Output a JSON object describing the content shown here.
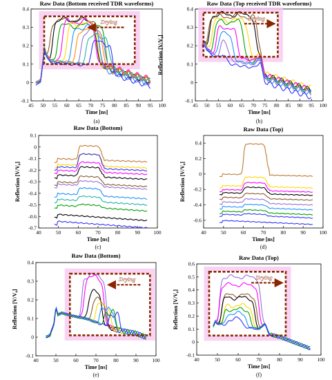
{
  "chart_data": [
    {
      "type": "line",
      "title": "Raw Data (Bottom received TDR waveforms)",
      "xlabel": "Time [ns]",
      "ylabel": "Reflection [V/V₀]",
      "caption": "(a)",
      "annotation": "Drying",
      "arrow": "left",
      "xlim": [
        45,
        100
      ],
      "ylim": [
        -0.1,
        0.4
      ],
      "xticks": [
        "45",
        "50",
        "55",
        "60",
        "65",
        "70",
        "75",
        "80",
        "85",
        "90",
        "95",
        "100"
      ],
      "yticks": [
        "-0.1",
        "0",
        "0.1",
        "0.2",
        "0.3",
        "0.4"
      ],
      "box": {
        "x": [
          50.5,
          88.5
        ],
        "y": [
          0.1,
          0.36
        ]
      },
      "base": [
        [
          47,
          0
        ],
        [
          49,
          0.01
        ],
        [
          50,
          0.12
        ],
        [
          50.6,
          0.19
        ],
        [
          51.5,
          0.15
        ],
        [
          53,
          0.12
        ],
        [
          55,
          0.115
        ],
        [
          60,
          0.11
        ],
        [
          65,
          0.105
        ],
        [
          70,
          0.1
        ],
        [
          75,
          0.09
        ],
        [
          80,
          0.07
        ],
        [
          85,
          0.05
        ],
        [
          90,
          0.03
        ],
        [
          95,
          0.01
        ]
      ],
      "series": [
        {
          "color": "#8B5A2B",
          "pulse": [
            53,
            73.5,
            0.34
          ],
          "offset": 0.0
        },
        {
          "color": "#000000",
          "pulse": [
            54,
            72.5,
            0.34
          ],
          "offset": -0.005
        },
        {
          "color": "#00A000",
          "pulse": [
            56,
            76,
            0.31
          ],
          "offset": 0.0
        },
        {
          "color": "#FF00FF",
          "pulse": [
            58,
            72,
            0.33
          ],
          "offset": 0.01
        },
        {
          "color": "#FFD700",
          "pulse": [
            60,
            73,
            0.32
          ],
          "offset": -0.01
        },
        {
          "color": "#1E90FF",
          "pulse": [
            62,
            74,
            0.3
          ],
          "offset": -0.02
        },
        {
          "color": "#FF8C00",
          "pulse": [
            64,
            75,
            0.29
          ],
          "offset": 0.005
        },
        {
          "color": "#9370DB",
          "pulse": [
            66,
            76,
            0.28
          ],
          "offset": -0.015
        },
        {
          "color": "#20B2AA",
          "pulse": [
            68,
            78,
            0.25
          ],
          "offset": 0.0
        },
        {
          "color": "#3333FF",
          "pulse": [
            70,
            79,
            0.22
          ],
          "offset": -0.03
        }
      ]
    },
    {
      "type": "line",
      "title": "Raw Data (Top received TDR waveforms)",
      "xlabel": "Time [ns]",
      "ylabel": "Reflection [V/V₀]",
      "caption": "(b)",
      "annotation": "Drying",
      "arrow": "right",
      "xlim": [
        45,
        100
      ],
      "ylim": [
        -0.1,
        0.4
      ],
      "xticks": [
        "45",
        "50",
        "55",
        "60",
        "65",
        "70",
        "75",
        "80",
        "85",
        "90",
        "95",
        "100"
      ],
      "yticks": [
        "-0.1",
        "0",
        "0.1",
        "0.2",
        "0.3",
        "0.4"
      ],
      "box": {
        "x": [
          48.5,
          80.5
        ],
        "y": [
          0.14,
          0.38
        ]
      },
      "base": [
        [
          48,
          0.2
        ],
        [
          49,
          0.22
        ],
        [
          50,
          0.19
        ],
        [
          52,
          0.16
        ],
        [
          55,
          0.15
        ],
        [
          60,
          0.14
        ],
        [
          65,
          0.13
        ],
        [
          70,
          0.12
        ],
        [
          73,
          0.15
        ],
        [
          75,
          0.04
        ],
        [
          80,
          0.02
        ],
        [
          85,
          0.0
        ],
        [
          90,
          -0.02
        ],
        [
          95,
          -0.04
        ]
      ],
      "series": [
        {
          "color": "#000000",
          "pulse": [
            51,
            71,
            0.37
          ],
          "offset": 0.0
        },
        {
          "color": "#8B5A2B",
          "pulse": [
            50.5,
            72,
            0.36
          ],
          "offset": 0.0
        },
        {
          "color": "#FFD700",
          "pulse": [
            52,
            68,
            0.34
          ],
          "offset": 0.01
        },
        {
          "color": "#00A000",
          "pulse": [
            53,
            66,
            0.33
          ],
          "offset": -0.01
        },
        {
          "color": "#FF00FF",
          "pulse": [
            54,
            63,
            0.3
          ],
          "offset": 0.0
        },
        {
          "color": "#1E90FF",
          "pulse": [
            55,
            61,
            0.28
          ],
          "offset": -0.02
        },
        {
          "color": "#9370DB",
          "pulse": [
            56,
            59,
            0.25
          ],
          "offset": -0.02
        },
        {
          "color": "#3333FF",
          "pulse": [
            57,
            58,
            0.2
          ],
          "offset": -0.04
        }
      ]
    },
    {
      "type": "line",
      "title": "Raw Data (Bottom)",
      "xlabel": "Time [ns]",
      "ylabel": "Reflection [V/V₀]",
      "caption": "(c)",
      "xlim": [
        40,
        100
      ],
      "ylim": [
        -0.7,
        0.1
      ],
      "xticks": [
        "40",
        "50",
        "60",
        "70",
        "80",
        "90",
        "100"
      ],
      "yticks": [
        "-0.7",
        "-0.6",
        "-0.5",
        "-0.4",
        "-0.3",
        "-0.2",
        "-0.1",
        "0",
        "0.1"
      ],
      "step_series": [
        {
          "color": "#C07830",
          "base": -0.1,
          "bump": 0.12
        },
        {
          "color": "#FFD700",
          "base": -0.15,
          "bump": 0.1
        },
        {
          "color": "#3333FF",
          "base": -0.17,
          "bump": 0.12
        },
        {
          "color": "#FF00FF",
          "base": -0.2,
          "bump": 0.08
        },
        {
          "color": "#000000",
          "base": -0.24,
          "bump": 0.08
        },
        {
          "color": "#8B5A2B",
          "base": -0.3,
          "bump": 0.06
        },
        {
          "color": "#9370DB",
          "base": -0.32,
          "bump": 0.04
        },
        {
          "color": "#1E90FF",
          "base": -0.4,
          "bump": 0.06
        },
        {
          "color": "#20B2AA",
          "base": -0.45,
          "bump": 0.04
        },
        {
          "color": "#00A000",
          "base": -0.5,
          "bump": 0.02
        },
        {
          "color": "#000000",
          "base": -0.58,
          "bump": 0.0
        },
        {
          "color": "#3333FF",
          "base": -0.64,
          "bump": 0.0
        }
      ]
    },
    {
      "type": "line",
      "title": "Raw Data (Top)",
      "xlabel": "Time [ns]",
      "ylabel": "Reflection [V/V₀]",
      "caption": "(d)",
      "xlim": [
        40,
        100
      ],
      "ylim": [
        -0.7,
        0.5
      ],
      "xticks": [
        "40",
        "50",
        "60",
        "70",
        "80",
        "90",
        "100"
      ],
      "yticks": [
        "-0.6",
        "-0.4",
        "-0.2",
        "0",
        "0.2",
        "0.4"
      ],
      "step_series": [
        {
          "color": "#C07830",
          "base": 0.0,
          "bump": 0.4
        },
        {
          "color": "#FFD700",
          "base": -0.15,
          "bump": 0.12
        },
        {
          "color": "#FF00FF",
          "base": -0.2,
          "bump": 0.1
        },
        {
          "color": "#000000",
          "base": -0.24,
          "bump": 0.08
        },
        {
          "color": "#8B5A2B",
          "base": -0.3,
          "bump": 0.06
        },
        {
          "color": "#9370DB",
          "base": -0.36,
          "bump": 0.05
        },
        {
          "color": "#1E90FF",
          "base": -0.42,
          "bump": 0.04
        },
        {
          "color": "#00A000",
          "base": -0.48,
          "bump": 0.03
        },
        {
          "color": "#3333FF",
          "base": -0.52,
          "bump": 0.02
        },
        {
          "color": "#3333FF",
          "base": -0.6,
          "bump": 0.0
        }
      ]
    },
    {
      "type": "line",
      "title": "Raw Data (Bottom)",
      "xlabel": "Time [ns]",
      "ylabel": "Reflection [V/V₀]",
      "caption": "(e)",
      "annotation": "Drying",
      "arrow": "left",
      "xlim": [
        40,
        100
      ],
      "ylim": [
        -0.1,
        0.4
      ],
      "xticks": [
        "40",
        "50",
        "60",
        "70",
        "80",
        "90",
        "100"
      ],
      "yticks": [
        "-0.1",
        "0",
        "0.1",
        "0.2",
        "0.3",
        "0.4"
      ],
      "box": {
        "x": [
          57,
          97
        ],
        "y": [
          0.01,
          0.34
        ]
      },
      "base": [
        [
          45,
          0
        ],
        [
          47,
          0.01
        ],
        [
          49,
          0.07
        ],
        [
          50,
          0.16
        ],
        [
          51,
          0.12
        ],
        [
          53,
          0.13
        ],
        [
          56,
          0.12
        ],
        [
          60,
          0.11
        ],
        [
          65,
          0.1
        ],
        [
          70,
          0.08
        ],
        [
          75,
          0.06
        ],
        [
          80,
          0.04
        ],
        [
          85,
          0.03
        ],
        [
          90,
          0.02
        ],
        [
          95,
          0.0
        ]
      ],
      "series": [
        {
          "color": "#9370DB",
          "pulse": [
            63,
            75,
            0.33
          ],
          "offset": 0.0
        },
        {
          "color": "#FF00FF",
          "pulse": [
            64,
            74,
            0.32
          ],
          "offset": 0.0
        },
        {
          "color": "#000000",
          "pulse": [
            66,
            73,
            0.24
          ],
          "offset": 0.0
        },
        {
          "color": "#8B5A2B",
          "pulse": [
            68,
            75,
            0.2
          ],
          "offset": 0.0
        },
        {
          "color": "#FFD700",
          "pulse": [
            70,
            77,
            0.18
          ],
          "offset": 0.0
        },
        {
          "color": "#1E90FF",
          "pulse": [
            72,
            79,
            0.16
          ],
          "offset": 0.0
        },
        {
          "color": "#00A000",
          "pulse": [
            74,
            80,
            0.14
          ],
          "offset": 0.0
        },
        {
          "color": "#3333FF",
          "pulse": [
            76,
            82,
            0.12
          ],
          "offset": 0.0
        }
      ]
    },
    {
      "type": "line",
      "title": "Raw Data (Top)",
      "xlabel": "Time [ns]",
      "ylabel": "Reflection [V/V₀]",
      "caption": "(f)",
      "annotation": "Drying",
      "arrow": "right",
      "xlim": [
        40,
        100
      ],
      "ylim": [
        -0.1,
        0.6
      ],
      "xticks": [
        "40",
        "50",
        "60",
        "70",
        "80",
        "90",
        "100"
      ],
      "yticks": [
        "-0.1",
        "0",
        "0.1",
        "0.2",
        "0.3",
        "0.4",
        "0.5",
        "0.6"
      ],
      "box": {
        "x": [
          46,
          83
        ],
        "y": [
          0.05,
          0.54
        ]
      },
      "base": [
        [
          48,
          0.12
        ],
        [
          49,
          0.16
        ],
        [
          50,
          0.14
        ],
        [
          55,
          0.13
        ],
        [
          60,
          0.12
        ],
        [
          65,
          0.11
        ],
        [
          70,
          0.1
        ],
        [
          73,
          0.14
        ],
        [
          75,
          0.06
        ],
        [
          80,
          0.04
        ],
        [
          85,
          0.01
        ],
        [
          90,
          -0.02
        ],
        [
          95,
          -0.05
        ]
      ],
      "series": [
        {
          "color": "#9370DB",
          "pulse": [
            51,
            71,
            0.5
          ],
          "offset": 0.0
        },
        {
          "color": "#FF00FF",
          "pulse": [
            51,
            70,
            0.44
          ],
          "offset": 0.0
        },
        {
          "color": "#8B5A2B",
          "pulse": [
            52,
            69,
            0.36
          ],
          "offset": 0.0
        },
        {
          "color": "#000000",
          "pulse": [
            52,
            68,
            0.34
          ],
          "offset": 0.0
        },
        {
          "color": "#FFD700",
          "pulse": [
            53,
            67,
            0.28
          ],
          "offset": 0.0
        },
        {
          "color": "#00A000",
          "pulse": [
            53,
            66,
            0.25
          ],
          "offset": 0.0
        },
        {
          "color": "#1E90FF",
          "pulse": [
            54,
            64,
            0.22
          ],
          "offset": 0.0
        },
        {
          "color": "#3333FF",
          "pulse": [
            55,
            62,
            0.18
          ],
          "offset": 0.0
        }
      ]
    }
  ],
  "colors": {
    "box": "#8B2500",
    "glow": "#F8C8F0",
    "axis": "#000000"
  }
}
